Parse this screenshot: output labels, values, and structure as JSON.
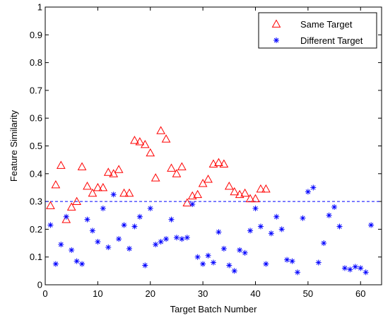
{
  "chart_data": {
    "type": "scatter",
    "xlabel": "Target Batch Number",
    "ylabel": "Feature Similarity",
    "xlim": [
      0,
      64
    ],
    "ylim": [
      0,
      1
    ],
    "x_ticks": [
      0,
      10,
      20,
      30,
      40,
      50,
      60
    ],
    "y_ticks": [
      0,
      0.1,
      0.2,
      0.3,
      0.4,
      0.5,
      0.6,
      0.7,
      0.8,
      0.9,
      1
    ],
    "grid": false,
    "legend_position": "top-right",
    "threshold": {
      "y": 0.3,
      "style": "dashed",
      "color": "#0000ff"
    },
    "series": [
      {
        "name": "Same Target",
        "marker": "triangle",
        "color": "#ff0000",
        "points": [
          [
            1,
            0.285
          ],
          [
            2,
            0.36
          ],
          [
            3,
            0.43
          ],
          [
            4,
            0.235
          ],
          [
            5,
            0.28
          ],
          [
            6,
            0.3
          ],
          [
            7,
            0.425
          ],
          [
            8,
            0.355
          ],
          [
            9,
            0.33
          ],
          [
            10,
            0.35
          ],
          [
            11,
            0.35
          ],
          [
            12,
            0.405
          ],
          [
            13,
            0.4
          ],
          [
            14,
            0.415
          ],
          [
            15,
            0.33
          ],
          [
            16,
            0.33
          ],
          [
            17,
            0.52
          ],
          [
            18,
            0.515
          ],
          [
            19,
            0.505
          ],
          [
            20,
            0.475
          ],
          [
            21,
            0.385
          ],
          [
            22,
            0.555
          ],
          [
            23,
            0.525
          ],
          [
            24,
            0.42
          ],
          [
            25,
            0.4
          ],
          [
            26,
            0.425
          ],
          [
            27,
            0.295
          ],
          [
            28,
            0.32
          ],
          [
            29,
            0.325
          ],
          [
            30,
            0.365
          ],
          [
            31,
            0.38
          ],
          [
            32,
            0.435
          ],
          [
            33,
            0.44
          ],
          [
            34,
            0.435
          ],
          [
            35,
            0.355
          ],
          [
            36,
            0.335
          ],
          [
            37,
            0.325
          ],
          [
            38,
            0.33
          ],
          [
            39,
            0.31
          ],
          [
            40,
            0.31
          ],
          [
            41,
            0.345
          ],
          [
            42,
            0.345
          ]
        ]
      },
      {
        "name": "Different Target",
        "marker": "asterisk",
        "color": "#0000ff",
        "points": [
          [
            1,
            0.215
          ],
          [
            2,
            0.075
          ],
          [
            3,
            0.145
          ],
          [
            4,
            0.245
          ],
          [
            5,
            0.125
          ],
          [
            6,
            0.085
          ],
          [
            7,
            0.075
          ],
          [
            8,
            0.235
          ],
          [
            9,
            0.195
          ],
          [
            10,
            0.155
          ],
          [
            11,
            0.275
          ],
          [
            12,
            0.135
          ],
          [
            13,
            0.325
          ],
          [
            14,
            0.165
          ],
          [
            15,
            0.215
          ],
          [
            16,
            0.13
          ],
          [
            17,
            0.21
          ],
          [
            18,
            0.245
          ],
          [
            19,
            0.07
          ],
          [
            20,
            0.275
          ],
          [
            21,
            0.145
          ],
          [
            22,
            0.155
          ],
          [
            23,
            0.165
          ],
          [
            24,
            0.235
          ],
          [
            25,
            0.17
          ],
          [
            26,
            0.165
          ],
          [
            27,
            0.17
          ],
          [
            28,
            0.29
          ],
          [
            29,
            0.1
          ],
          [
            30,
            0.075
          ],
          [
            31,
            0.105
          ],
          [
            32,
            0.08
          ],
          [
            33,
            0.19
          ],
          [
            34,
            0.13
          ],
          [
            35,
            0.07
          ],
          [
            36,
            0.05
          ],
          [
            37,
            0.125
          ],
          [
            38,
            0.115
          ],
          [
            39,
            0.195
          ],
          [
            40,
            0.275
          ],
          [
            41,
            0.21
          ],
          [
            42,
            0.075
          ],
          [
            43,
            0.185
          ],
          [
            44,
            0.245
          ],
          [
            45,
            0.2
          ],
          [
            46,
            0.09
          ],
          [
            47,
            0.085
          ],
          [
            48,
            0.045
          ],
          [
            49,
            0.24
          ],
          [
            50,
            0.335
          ],
          [
            51,
            0.35
          ],
          [
            52,
            0.08
          ],
          [
            53,
            0.15
          ],
          [
            54,
            0.25
          ],
          [
            55,
            0.28
          ],
          [
            56,
            0.21
          ],
          [
            57,
            0.06
          ],
          [
            58,
            0.055
          ],
          [
            59,
            0.065
          ],
          [
            60,
            0.06
          ],
          [
            61,
            0.045
          ],
          [
            62,
            0.215
          ]
        ]
      }
    ]
  }
}
